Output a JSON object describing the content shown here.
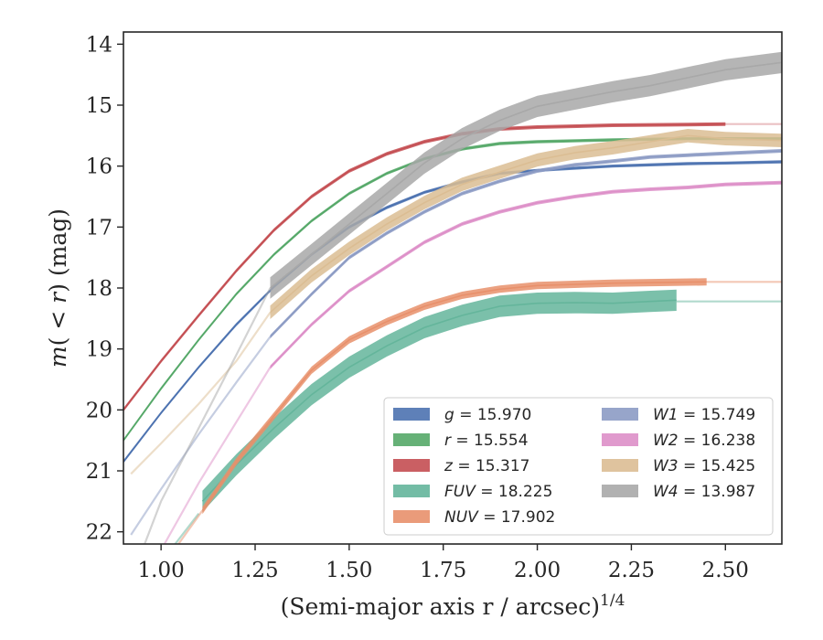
{
  "chart_data": {
    "type": "line",
    "title": "",
    "xlabel": "(Semi-major axis r / arcsec)",
    "xlabel_superscript": "1/4",
    "ylabel_parts": {
      "m": "m",
      "lt": "( < ",
      "r": "r",
      "close": ")",
      "unit": " (mag)"
    },
    "xlim": [
      0.9,
      2.65
    ],
    "ylim": [
      22.2,
      13.8
    ],
    "y_inverted": true,
    "xticks": [
      "1.00",
      "1.25",
      "1.50",
      "1.75",
      "2.00",
      "2.25",
      "2.50"
    ],
    "yticks": [
      "14",
      "15",
      "16",
      "17",
      "18",
      "19",
      "20",
      "21",
      "22"
    ],
    "grid": false,
    "legend_position": "lower-right",
    "series": [
      {
        "name": "g",
        "label_value": "15.970",
        "color": "#4c72b0",
        "band": 0.05,
        "dashed": false,
        "points": [
          [
            0.9,
            20.85
          ],
          [
            1.0,
            20.05
          ],
          [
            1.1,
            19.3
          ],
          [
            1.2,
            18.6
          ],
          [
            1.3,
            17.98
          ],
          [
            1.4,
            17.45
          ],
          [
            1.5,
            17.0
          ],
          [
            1.6,
            16.68
          ],
          [
            1.7,
            16.43
          ],
          [
            1.8,
            16.26
          ],
          [
            1.9,
            16.12
          ],
          [
            2.0,
            16.07
          ],
          [
            2.2,
            16.0
          ],
          [
            2.4,
            15.96
          ],
          [
            2.5,
            15.95
          ],
          [
            2.65,
            15.93
          ]
        ]
      },
      {
        "name": "r",
        "label_value": "15.554",
        "color": "#55a868",
        "band": 0.05,
        "dashed": false,
        "points": [
          [
            0.9,
            20.5
          ],
          [
            1.0,
            19.65
          ],
          [
            1.1,
            18.85
          ],
          [
            1.2,
            18.1
          ],
          [
            1.3,
            17.45
          ],
          [
            1.4,
            16.9
          ],
          [
            1.5,
            16.45
          ],
          [
            1.6,
            16.12
          ],
          [
            1.7,
            15.88
          ],
          [
            1.8,
            15.72
          ],
          [
            1.9,
            15.63
          ],
          [
            2.0,
            15.6
          ],
          [
            2.2,
            15.57
          ],
          [
            2.4,
            15.55
          ],
          [
            2.65,
            15.55
          ]
        ]
      },
      {
        "name": "z",
        "label_value": "15.317",
        "color": "#c44e52",
        "band": 0.06,
        "dashed": false,
        "points": [
          [
            0.9,
            20.0
          ],
          [
            1.0,
            19.2
          ],
          [
            1.1,
            18.45
          ],
          [
            1.2,
            17.72
          ],
          [
            1.3,
            17.05
          ],
          [
            1.4,
            16.5
          ],
          [
            1.5,
            16.08
          ],
          [
            1.6,
            15.8
          ],
          [
            1.7,
            15.6
          ],
          [
            1.8,
            15.47
          ],
          [
            1.9,
            15.39
          ],
          [
            2.0,
            15.36
          ],
          [
            2.2,
            15.33
          ],
          [
            2.4,
            15.32
          ],
          [
            2.5,
            15.31
          ]
        ]
      },
      {
        "name": "z",
        "label_value": "",
        "color": "#c44e52",
        "band": 0.02,
        "dashed": true,
        "opacity": 0.35,
        "points": [
          [
            2.5,
            15.31
          ],
          [
            2.65,
            15.31
          ]
        ]
      },
      {
        "name": "FUV",
        "label_value": "18.225",
        "color": "#64b59b",
        "band": 0.35,
        "dashed": false,
        "points": [
          [
            1.11,
            21.5
          ],
          [
            1.2,
            20.9
          ],
          [
            1.3,
            20.3
          ],
          [
            1.4,
            19.75
          ],
          [
            1.5,
            19.3
          ],
          [
            1.6,
            18.95
          ],
          [
            1.7,
            18.65
          ],
          [
            1.8,
            18.45
          ],
          [
            1.9,
            18.3
          ],
          [
            2.0,
            18.25
          ],
          [
            2.1,
            18.24
          ],
          [
            2.2,
            18.25
          ],
          [
            2.3,
            18.22
          ],
          [
            2.37,
            18.2
          ]
        ]
      },
      {
        "name": "FUV",
        "label_value": "",
        "color": "#64b59b",
        "band": 0.02,
        "dashed": true,
        "opacity": 0.5,
        "points": [
          [
            0.9,
            23.5
          ],
          [
            1.0,
            22.5
          ],
          [
            1.1,
            21.7
          ]
        ]
      },
      {
        "name": "FUV",
        "label_value": "",
        "color": "#64b59b",
        "band": 0.02,
        "dashed": true,
        "opacity": 0.5,
        "points": [
          [
            2.37,
            18.22
          ],
          [
            2.65,
            18.22
          ]
        ]
      },
      {
        "name": "NUV",
        "label_value": "17.902",
        "color": "#e8906b",
        "band": 0.12,
        "dashed": false,
        "points": [
          [
            1.11,
            21.65
          ],
          [
            1.2,
            20.85
          ],
          [
            1.3,
            20.1
          ],
          [
            1.4,
            19.35
          ],
          [
            1.5,
            18.85
          ],
          [
            1.6,
            18.55
          ],
          [
            1.7,
            18.3
          ],
          [
            1.8,
            18.12
          ],
          [
            1.9,
            18.02
          ],
          [
            2.0,
            17.96
          ],
          [
            2.2,
            17.92
          ],
          [
            2.45,
            17.9
          ]
        ]
      },
      {
        "name": "NUV",
        "label_value": "",
        "color": "#e8906b",
        "band": 0.02,
        "dashed": true,
        "opacity": 0.5,
        "points": [
          [
            0.9,
            23.8
          ],
          [
            1.0,
            22.6
          ],
          [
            1.11,
            21.65
          ]
        ]
      },
      {
        "name": "NUV",
        "label_value": "",
        "color": "#e8906b",
        "band": 0.02,
        "dashed": true,
        "opacity": 0.5,
        "points": [
          [
            2.45,
            17.9
          ],
          [
            2.65,
            17.9
          ]
        ]
      },
      {
        "name": "W1",
        "label_value": "15.749",
        "color": "#8c9bc4",
        "band": 0.06,
        "dashed": false,
        "points": [
          [
            1.29,
            18.8
          ],
          [
            1.4,
            18.1
          ],
          [
            1.5,
            17.5
          ],
          [
            1.6,
            17.1
          ],
          [
            1.7,
            16.75
          ],
          [
            1.8,
            16.45
          ],
          [
            1.9,
            16.25
          ],
          [
            2.0,
            16.08
          ],
          [
            2.1,
            15.98
          ],
          [
            2.2,
            15.92
          ],
          [
            2.3,
            15.85
          ],
          [
            2.4,
            15.82
          ],
          [
            2.5,
            15.79
          ],
          [
            2.65,
            15.75
          ]
        ]
      },
      {
        "name": "W1",
        "label_value": "",
        "color": "#8c9bc4",
        "band": 0.02,
        "dashed": true,
        "opacity": 0.5,
        "points": [
          [
            0.92,
            22.05
          ],
          [
            1.0,
            21.3
          ],
          [
            1.1,
            20.4
          ],
          [
            1.2,
            19.55
          ],
          [
            1.29,
            18.8
          ]
        ]
      },
      {
        "name": "W2",
        "label_value": "16.238",
        "color": "#dd8fc8",
        "band": 0.06,
        "dashed": false,
        "points": [
          [
            1.29,
            19.3
          ],
          [
            1.4,
            18.6
          ],
          [
            1.5,
            18.05
          ],
          [
            1.6,
            17.65
          ],
          [
            1.7,
            17.25
          ],
          [
            1.8,
            16.95
          ],
          [
            1.9,
            16.75
          ],
          [
            2.0,
            16.6
          ],
          [
            2.1,
            16.5
          ],
          [
            2.2,
            16.42
          ],
          [
            2.3,
            16.38
          ],
          [
            2.4,
            16.35
          ],
          [
            2.5,
            16.3
          ],
          [
            2.65,
            16.27
          ]
        ]
      },
      {
        "name": "W2",
        "label_value": "",
        "color": "#dd8fc8",
        "band": 0.02,
        "dashed": true,
        "opacity": 0.5,
        "points": [
          [
            0.93,
            23.5
          ],
          [
            1.0,
            22.3
          ],
          [
            1.1,
            21.2
          ],
          [
            1.2,
            20.2
          ],
          [
            1.29,
            19.3
          ]
        ]
      },
      {
        "name": "W3",
        "label_value": "15.425",
        "color": "#dbbd93",
        "band": 0.22,
        "dashed": false,
        "points": [
          [
            1.29,
            18.4
          ],
          [
            1.4,
            17.8
          ],
          [
            1.5,
            17.35
          ],
          [
            1.6,
            16.95
          ],
          [
            1.7,
            16.6
          ],
          [
            1.8,
            16.3
          ],
          [
            1.9,
            16.1
          ],
          [
            2.0,
            15.9
          ],
          [
            2.1,
            15.78
          ],
          [
            2.2,
            15.7
          ],
          [
            2.3,
            15.6
          ],
          [
            2.4,
            15.5
          ],
          [
            2.5,
            15.55
          ],
          [
            2.65,
            15.58
          ]
        ]
      },
      {
        "name": "W3",
        "label_value": "",
        "color": "#dbbd93",
        "band": 0.02,
        "dashed": true,
        "opacity": 0.5,
        "points": [
          [
            0.92,
            21.05
          ],
          [
            1.0,
            20.55
          ],
          [
            1.1,
            19.9
          ],
          [
            1.2,
            19.2
          ],
          [
            1.29,
            18.4
          ]
        ]
      },
      {
        "name": "W4",
        "label_value": "13.987",
        "color": "#a8a8a8",
        "band": 0.35,
        "dashed": false,
        "points": [
          [
            1.29,
            18.0
          ],
          [
            1.4,
            17.45
          ],
          [
            1.5,
            16.95
          ],
          [
            1.6,
            16.45
          ],
          [
            1.7,
            15.95
          ],
          [
            1.8,
            15.55
          ],
          [
            1.9,
            15.25
          ],
          [
            2.0,
            15.02
          ],
          [
            2.1,
            14.9
          ],
          [
            2.2,
            14.78
          ],
          [
            2.3,
            14.68
          ],
          [
            2.4,
            14.55
          ],
          [
            2.5,
            14.42
          ],
          [
            2.65,
            14.3
          ]
        ]
      },
      {
        "name": "W4",
        "label_value": "",
        "color": "#a8a8a8",
        "band": 0.02,
        "dashed": true,
        "opacity": 0.5,
        "points": [
          [
            0.95,
            22.3
          ],
          [
            1.0,
            21.5
          ],
          [
            1.1,
            20.3
          ],
          [
            1.2,
            19.1
          ],
          [
            1.29,
            18.0
          ]
        ]
      }
    ],
    "legend": [
      {
        "name": "g",
        "value": "15.970",
        "color": "#4c72b0"
      },
      {
        "name": "r",
        "value": "15.554",
        "color": "#55a868"
      },
      {
        "name": "z",
        "value": "15.317",
        "color": "#c44e52"
      },
      {
        "name": "FUV",
        "value": "18.225",
        "color": "#64b59b"
      },
      {
        "name": "NUV",
        "value": "17.902",
        "color": "#e8906b"
      },
      {
        "name": "W1",
        "value": "15.749",
        "color": "#8c9bc4"
      },
      {
        "name": "W2",
        "value": "16.238",
        "color": "#dd8fc8"
      },
      {
        "name": "W3",
        "value": "15.425",
        "color": "#dbbd93"
      },
      {
        "name": "W4",
        "value": "13.987",
        "color": "#a8a8a8"
      }
    ]
  }
}
